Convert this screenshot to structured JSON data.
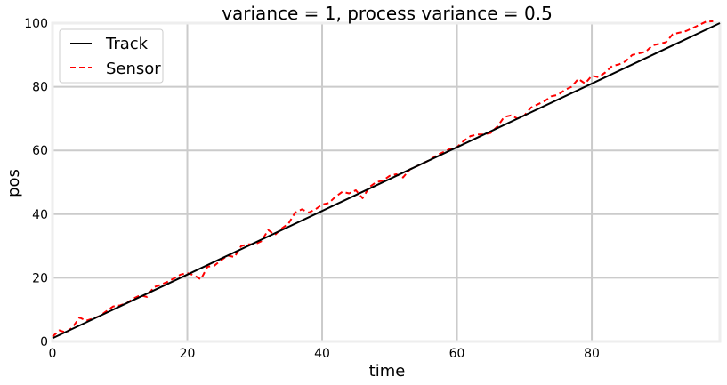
{
  "chart_data": {
    "type": "line",
    "title": "variance = 1, process variance = 0.5",
    "xlabel": "time",
    "ylabel": "pos",
    "xlim": [
      0,
      99
    ],
    "ylim": [
      0,
      100
    ],
    "xticks": [
      0,
      20,
      40,
      60,
      80
    ],
    "yticks": [
      0,
      20,
      40,
      60,
      80,
      100
    ],
    "grid": true,
    "legend_position": "top-left",
    "series": [
      {
        "name": "Track",
        "color": "#000000",
        "style": "solid",
        "x": [
          0,
          99
        ],
        "y": [
          1,
          100
        ]
      },
      {
        "name": "Sensor",
        "color": "#ff0000",
        "style": "dashed",
        "x": [
          0,
          1,
          2,
          3,
          4,
          5,
          6,
          7,
          8,
          9,
          10,
          11,
          12,
          13,
          14,
          15,
          16,
          17,
          18,
          19,
          20,
          21,
          22,
          23,
          24,
          25,
          26,
          27,
          28,
          29,
          30,
          31,
          32,
          33,
          34,
          35,
          36,
          37,
          38,
          39,
          40,
          41,
          42,
          43,
          44,
          45,
          46,
          47,
          48,
          49,
          50,
          51,
          52,
          53,
          54,
          55,
          56,
          57,
          58,
          59,
          60,
          61,
          62,
          63,
          64,
          65,
          66,
          67,
          68,
          69,
          70,
          71,
          72,
          73,
          74,
          75,
          76,
          77,
          78,
          79,
          80,
          81,
          82,
          83,
          84,
          85,
          86,
          87,
          88,
          89,
          90,
          91,
          92,
          93,
          94,
          95,
          96,
          97,
          98
        ],
        "y": [
          1.5,
          3.5,
          2.8,
          4.5,
          7.5,
          6.5,
          7.2,
          8.0,
          9.5,
          11.0,
          11.3,
          12.0,
          13.5,
          14.5,
          14.0,
          17.0,
          17.8,
          18.7,
          19.8,
          21.0,
          21.5,
          20.8,
          19.5,
          23.5,
          23.8,
          25.5,
          27.0,
          26.5,
          30.0,
          30.5,
          30.5,
          31.5,
          35.0,
          33.5,
          35.5,
          37.0,
          40.5,
          41.5,
          40.5,
          41.5,
          43.0,
          43.5,
          45.5,
          47.0,
          46.5,
          47.5,
          45.0,
          48.5,
          50.0,
          50.5,
          52.0,
          52.5,
          51.5,
          54.0,
          55.0,
          56.0,
          57.0,
          58.5,
          59.5,
          60.5,
          61.0,
          63.0,
          64.5,
          65.0,
          65.0,
          65.5,
          67.5,
          70.5,
          71.0,
          70.0,
          71.0,
          73.5,
          74.5,
          75.5,
          77.0,
          77.5,
          79.0,
          80.0,
          82.5,
          81.0,
          83.5,
          83.0,
          84.5,
          86.5,
          87.0,
          88.0,
          90.0,
          90.5,
          91.0,
          93.0,
          93.5,
          94.0,
          96.5,
          97.0,
          97.5,
          98.5,
          99.5,
          100.5,
          101.0
        ]
      }
    ]
  }
}
